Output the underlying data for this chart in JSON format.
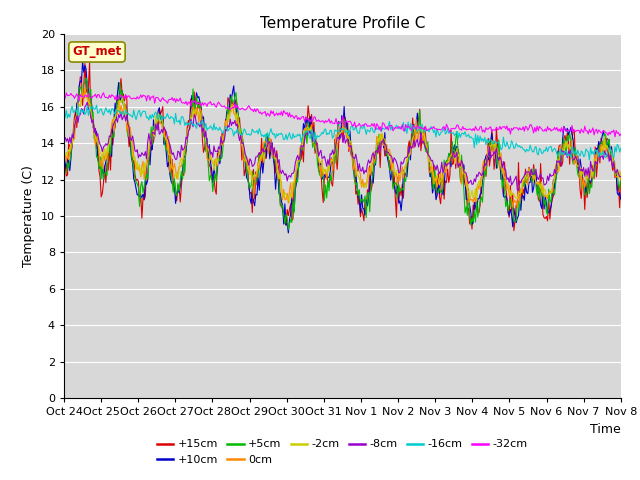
{
  "title": "Temperature Profile C",
  "xlabel": "Time",
  "ylabel": "Temperature (C)",
  "ylim": [
    0,
    20
  ],
  "yticks": [
    0,
    2,
    4,
    6,
    8,
    10,
    12,
    14,
    16,
    18,
    20
  ],
  "annotation_text": "GT_met",
  "annotation_color": "#cc0000",
  "annotation_bg": "#ffffcc",
  "bg_color": "#d8d8d8",
  "series": [
    {
      "label": "+15cm",
      "color": "#dd0000"
    },
    {
      "label": "+10cm",
      "color": "#0000cc"
    },
    {
      "label": "+5cm",
      "color": "#00bb00"
    },
    {
      "label": "0cm",
      "color": "#ff8800"
    },
    {
      "label": "-2cm",
      "color": "#cccc00"
    },
    {
      "label": "-8cm",
      "color": "#9900cc"
    },
    {
      "label": "-16cm",
      "color": "#00cccc"
    },
    {
      "label": "-32cm",
      "color": "#ff00ff"
    }
  ],
  "x_tick_labels": [
    "Oct 24",
    "Oct 25",
    "Oct 26",
    "Oct 27",
    "Oct 28",
    "Oct 29",
    "Oct 30",
    "Oct 31",
    "Nov 1",
    "Nov 2",
    "Nov 3",
    "Nov 4",
    "Nov 5",
    "Nov 6",
    "Nov 7",
    "Nov 8"
  ],
  "n_points": 480
}
